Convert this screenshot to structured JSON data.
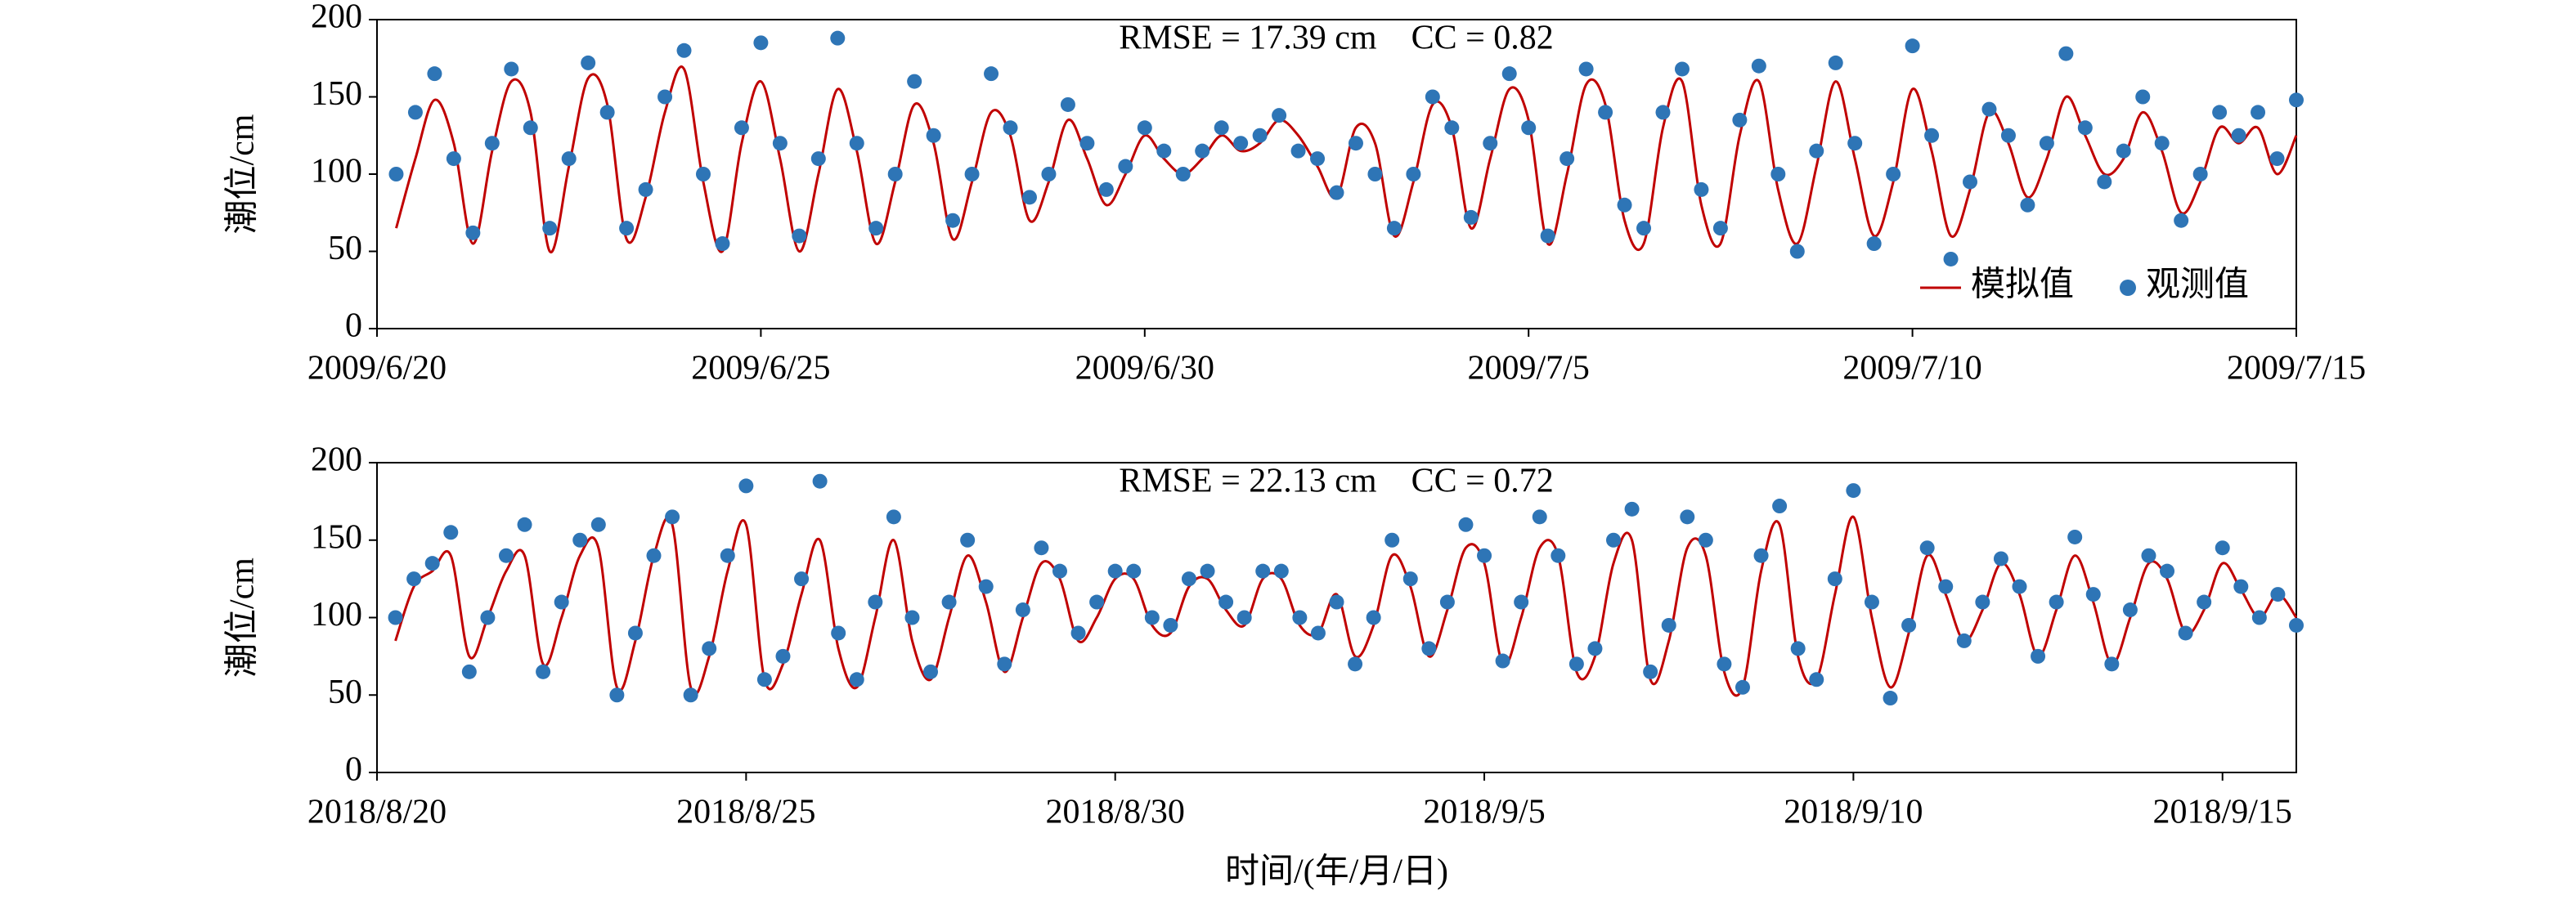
{
  "chart_data": [
    {
      "type": "line",
      "annotation": "RMSE = 17.39 cm    CC = 0.82",
      "ylabel": "潮位/cm",
      "x": [
        0.25,
        0.5,
        0.75,
        1,
        1.25,
        1.5,
        1.75,
        2,
        2.25,
        2.5,
        2.75,
        3,
        3.25,
        3.5,
        3.75,
        4,
        4.25,
        4.5,
        4.75,
        5,
        5.25,
        5.5,
        5.75,
        6,
        6.25,
        6.5,
        6.75,
        7,
        7.25,
        7.5,
        7.75,
        8,
        8.25,
        8.5,
        8.75,
        9,
        9.25,
        9.5,
        9.75,
        10,
        10.25,
        10.5,
        10.75,
        11,
        11.25,
        11.5,
        11.75,
        12,
        12.25,
        12.5,
        12.75,
        13,
        13.25,
        13.5,
        13.75,
        14,
        14.25,
        14.5,
        14.75,
        15,
        15.25,
        15.5,
        15.75,
        16,
        16.25,
        16.5,
        16.75,
        17,
        17.25,
        17.5,
        17.75,
        18,
        18.25,
        18.5,
        18.75,
        19,
        19.25,
        19.5,
        19.75,
        20,
        20.25,
        20.5,
        20.75,
        21,
        21.25,
        21.5,
        21.75,
        22,
        22.25,
        22.5,
        22.75,
        23,
        23.25,
        23.5,
        23.75,
        24,
        24.25,
        24.5,
        24.75,
        25
      ],
      "series": [
        {
          "name": "模拟值",
          "color": "#c00000",
          "style": "line",
          "values": [
            65,
            110,
            148,
            120,
            55,
            115,
            160,
            140,
            50,
            105,
            162,
            145,
            58,
            85,
            140,
            168,
            95,
            50,
            120,
            160,
            110,
            50,
            100,
            155,
            115,
            55,
            95,
            145,
            120,
            58,
            95,
            140,
            125,
            70,
            95,
            135,
            110,
            80,
            100,
            125,
            110,
            100,
            110,
            125,
            115,
            120,
            135,
            125,
            105,
            85,
            130,
            120,
            60,
            95,
            145,
            130,
            65,
            110,
            155,
            135,
            55,
            100,
            158,
            145,
            70,
            55,
            130,
            160,
            80,
            55,
            125,
            160,
            90,
            55,
            105,
            160,
            110,
            60,
            95,
            155,
            115,
            60,
            90,
            140,
            120,
            85,
            110,
            150,
            125,
            100,
            110,
            140,
            115,
            75,
            95,
            130,
            120,
            130,
            100,
            125
          ]
        },
        {
          "name": "观测值",
          "color": "#2e75b6",
          "style": "dots",
          "values": [
            100,
            140,
            165,
            110,
            62,
            120,
            168,
            130,
            65,
            110,
            172,
            140,
            65,
            90,
            150,
            180,
            100,
            55,
            130,
            185,
            120,
            60,
            110,
            188,
            120,
            65,
            100,
            160,
            125,
            70,
            100,
            165,
            130,
            85,
            100,
            145,
            120,
            90,
            105,
            130,
            115,
            100,
            115,
            130,
            120,
            125,
            138,
            115,
            110,
            88,
            120,
            100,
            65,
            100,
            150,
            130,
            72,
            120,
            165,
            130,
            60,
            110,
            168,
            140,
            80,
            65,
            140,
            168,
            90,
            65,
            135,
            170,
            100,
            50,
            115,
            172,
            120,
            55,
            100,
            183,
            125,
            45,
            95,
            142,
            125,
            80,
            120,
            178,
            130,
            95,
            115,
            150,
            120,
            70,
            100,
            140,
            125,
            140,
            110,
            148
          ]
        }
      ],
      "xlim": [
        0,
        25
      ],
      "xticks": [
        {
          "value": 0,
          "label": "2009/6/20"
        },
        {
          "value": 5,
          "label": "2009/6/25"
        },
        {
          "value": 10,
          "label": "2009/6/30"
        },
        {
          "value": 15,
          "label": "2009/7/5"
        },
        {
          "value": 20,
          "label": "2009/7/10"
        },
        {
          "value": 25,
          "label": "2009/7/15"
        }
      ],
      "ylim": [
        0,
        200
      ],
      "yticks": [
        0,
        50,
        100,
        150,
        200
      ],
      "legend": "lower right"
    },
    {
      "type": "line",
      "annotation": "RMSE = 22.13 cm    CC = 0.72",
      "ylabel": "潮位/cm",
      "xlabel": "时间/(年/月/日)",
      "x": [
        0.25,
        0.5,
        0.75,
        1,
        1.25,
        1.5,
        1.75,
        2,
        2.25,
        2.5,
        2.75,
        3,
        3.25,
        3.5,
        3.75,
        4,
        4.25,
        4.5,
        4.75,
        5,
        5.25,
        5.5,
        5.75,
        6,
        6.25,
        6.5,
        6.75,
        7,
        7.25,
        7.5,
        7.75,
        8,
        8.25,
        8.5,
        8.75,
        9,
        9.25,
        9.5,
        9.75,
        10,
        10.25,
        10.5,
        10.75,
        11,
        11.25,
        11.5,
        11.75,
        12,
        12.25,
        12.5,
        12.75,
        13,
        13.25,
        13.5,
        13.75,
        14,
        14.25,
        14.5,
        14.75,
        15,
        15.25,
        15.5,
        15.75,
        16,
        16.25,
        16.5,
        16.75,
        17,
        17.25,
        17.5,
        17.75,
        18,
        18.25,
        18.5,
        18.75,
        19,
        19.25,
        19.5,
        19.75,
        20,
        20.25,
        20.5,
        20.75,
        21,
        21.25,
        21.5,
        21.75,
        22,
        22.25,
        22.5,
        22.75,
        23,
        23.25,
        23.5,
        23.75,
        24,
        24.25,
        24.5,
        24.75,
        25,
        25.25,
        25.5,
        25.75,
        26
      ],
      "series": [
        {
          "name": "模拟值",
          "color": "#c00000",
          "style": "line",
          "values": [
            85,
            120,
            130,
            140,
            75,
            100,
            130,
            140,
            70,
            100,
            140,
            145,
            55,
            85,
            140,
            160,
            55,
            75,
            130,
            160,
            60,
            70,
            115,
            150,
            80,
            55,
            100,
            150,
            85,
            60,
            100,
            140,
            110,
            65,
            100,
            135,
            125,
            85,
            100,
            125,
            125,
            95,
            90,
            120,
            125,
            105,
            95,
            125,
            125,
            95,
            90,
            115,
            75,
            95,
            140,
            120,
            75,
            105,
            145,
            135,
            70,
            100,
            145,
            140,
            65,
            75,
            135,
            150,
            60,
            85,
            145,
            140,
            65,
            55,
            130,
            160,
            75,
            60,
            115,
            165,
            100,
            55,
            90,
            140,
            115,
            85,
            105,
            135,
            115,
            75,
            105,
            140,
            110,
            70,
            100,
            135,
            125,
            90,
            105,
            135,
            118,
            100,
            115,
            100
          ]
        },
        {
          "name": "观测值",
          "color": "#2e75b6",
          "style": "dots",
          "values": [
            100,
            125,
            135,
            155,
            65,
            100,
            140,
            160,
            65,
            110,
            150,
            160,
            50,
            90,
            140,
            165,
            50,
            80,
            140,
            185,
            60,
            75,
            125,
            188,
            90,
            60,
            110,
            165,
            100,
            65,
            110,
            150,
            120,
            70,
            105,
            145,
            130,
            90,
            110,
            130,
            130,
            100,
            95,
            125,
            130,
            110,
            100,
            130,
            130,
            100,
            90,
            110,
            70,
            100,
            150,
            125,
            80,
            110,
            160,
            140,
            72,
            110,
            165,
            140,
            70,
            80,
            150,
            170,
            65,
            95,
            165,
            150,
            70,
            55,
            140,
            172,
            80,
            60,
            125,
            182,
            110,
            48,
            95,
            145,
            120,
            85,
            110,
            138,
            120,
            75,
            110,
            152,
            115,
            70,
            105,
            140,
            130,
            90,
            110,
            145,
            120,
            100,
            115,
            95
          ]
        }
      ],
      "xlim": [
        0,
        26
      ],
      "xticks": [
        {
          "value": 0,
          "label": "2018/8/20"
        },
        {
          "value": 5,
          "label": "2018/8/25"
        },
        {
          "value": 10,
          "label": "2018/8/30"
        },
        {
          "value": 15,
          "label": "2018/9/5"
        },
        {
          "value": 20,
          "label": "2018/9/10"
        },
        {
          "value": 25,
          "label": "2018/9/15"
        }
      ],
      "ylim": [
        0,
        200
      ],
      "yticks": [
        0,
        50,
        100,
        150,
        200
      ]
    }
  ]
}
